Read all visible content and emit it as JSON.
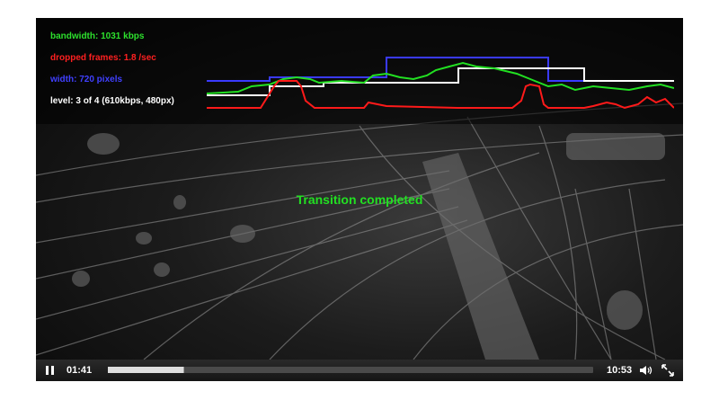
{
  "stats": {
    "bandwidth": {
      "label": "bandwidth:",
      "value": "1031 kbps",
      "color": "#2de02d"
    },
    "dropped_frames": {
      "label": "dropped frames:",
      "value": "1.8 /sec",
      "color": "#ff2020"
    },
    "width": {
      "label": "width:",
      "value": "720 pixels",
      "color": "#4040ff"
    },
    "level": {
      "label": "level:",
      "value": "3 of 4 (610kbps, 480px)",
      "color": "#ffffff"
    }
  },
  "message": "Transition completed",
  "controls": {
    "current_time": "01:41",
    "duration": "10:53",
    "progress_fraction": 0.155,
    "buffered_fraction": 0.158
  },
  "icons": {
    "play_pause": "pause-icon",
    "volume": "volume-icon",
    "fullscreen": "fullscreen-icon"
  }
}
